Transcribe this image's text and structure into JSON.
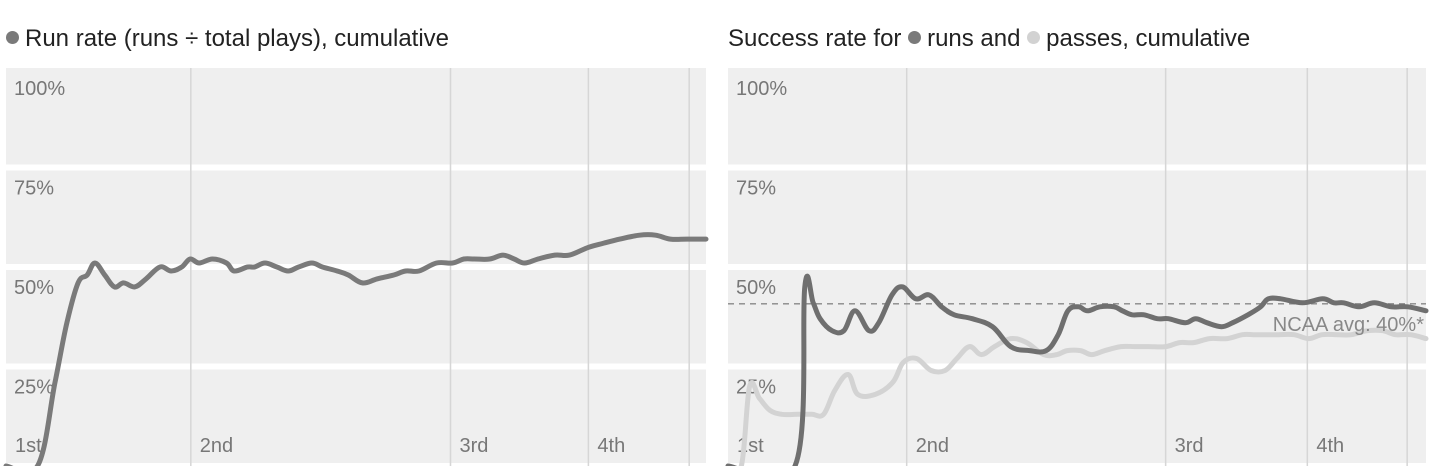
{
  "charts": [
    {
      "title_text": "Run rate (runs ÷ total plays), cumulative"
    },
    {
      "title_prefix": "Success rate for",
      "title_runs": "runs and",
      "title_passes": "passes, cumulative",
      "note": "NCAA avg: 40%*"
    }
  ],
  "chart_data": [
    {
      "type": "line",
      "title": "Run rate (runs ÷ total plays), cumulative",
      "ylim": [
        0,
        100
      ],
      "yticks": [
        "100%",
        "75%",
        "50%",
        "25%"
      ],
      "xlim": [
        0,
        100
      ],
      "quarters": [
        {
          "label": "1st",
          "x": 0
        },
        {
          "label": "2nd",
          "x": 26.4
        },
        {
          "label": "3rd",
          "x": 63.5
        },
        {
          "label": "4th",
          "x": 83.2
        }
      ],
      "extra_divider_x": [
        97.6
      ],
      "grid": true,
      "series": [
        {
          "color": "#7a7a7a",
          "x": [
            0,
            4.5,
            7.0,
            8.7,
            10.3,
            11.6,
            12.7,
            14.1,
            15.5,
            16.8,
            18.4,
            20.0,
            22.0,
            23.6,
            25.1,
            26.3,
            27.6,
            29.5,
            31.5,
            32.6,
            34.5,
            35.5,
            37.0,
            38.7,
            40.3,
            41.8,
            43.7,
            45.2,
            47.3,
            48.9,
            50.9,
            53.0,
            55.4,
            57.1,
            59.0,
            61.5,
            63.8,
            65.4,
            66.9,
            69.1,
            71.0,
            72.6,
            74.1,
            76.0,
            78.4,
            80.5,
            83.3,
            85.4,
            87.7,
            90.5,
            92.8,
            94.9,
            97.3,
            100
          ],
          "y": [
            0,
            0,
            21,
            36,
            46,
            48,
            51,
            48,
            45,
            46,
            45,
            47,
            50,
            49,
            50,
            52,
            51,
            52,
            51,
            49,
            50,
            50,
            51,
            50,
            49,
            50,
            51,
            50,
            49,
            48,
            46,
            47,
            48,
            49,
            49,
            51,
            51,
            52,
            52,
            52,
            53,
            52,
            51,
            52,
            53,
            53,
            55,
            56,
            57,
            58,
            58,
            57,
            57,
            57
          ]
        }
      ]
    },
    {
      "type": "line",
      "title": "Success rate for runs and passes, cumulative",
      "ylim": [
        0,
        100
      ],
      "yticks": [
        "100%",
        "75%",
        "50%",
        "25%"
      ],
      "xlim": [
        0,
        100
      ],
      "quarters": [
        {
          "label": "1st",
          "x": 0
        },
        {
          "label": "2nd",
          "x": 25.6
        },
        {
          "label": "3rd",
          "x": 62.7
        },
        {
          "label": "4th",
          "x": 83.0
        }
      ],
      "extra_divider_x": [
        97.3
      ],
      "grid": true,
      "reference_line": {
        "label": "NCAA avg: 40%*",
        "y": 40
      },
      "series": [
        {
          "name": "runs",
          "color": "#6f6f6f",
          "x": [
            0,
            9.6,
            11.0,
            12.2,
            13.2,
            14.9,
            16.6,
            18.2,
            20.2,
            21.6,
            23.5,
            25.0,
            26.9,
            28.8,
            30.6,
            32.4,
            35.0,
            37.9,
            40.5,
            43.2,
            45.6,
            47.3,
            48.7,
            50.2,
            51.5,
            53.3,
            55.3,
            56.5,
            57.9,
            59.6,
            61.5,
            63.1,
            65.5,
            67.0,
            68.6,
            70.7,
            72.3,
            74.5,
            76.3,
            77.4,
            79.2,
            82.3,
            85.2,
            86.8,
            88.2,
            90.4,
            92.6,
            95.0,
            97.4,
            100
          ],
          "y": [
            0,
            0,
            45,
            41,
            37,
            34,
            34,
            39,
            34,
            36,
            43,
            45,
            42,
            43,
            40,
            38,
            37,
            35,
            30,
            29,
            29,
            33,
            39,
            40,
            39,
            40,
            40,
            39,
            38,
            38,
            37,
            37,
            36,
            37,
            36,
            35,
            36,
            38,
            40,
            42,
            42,
            41,
            42,
            41,
            41,
            40,
            41,
            40,
            40,
            39
          ]
        },
        {
          "name": "passes",
          "color": "#d3d3d3",
          "x": [
            0,
            1.9,
            3.1,
            4.5,
            6.0,
            7.7,
            10.0,
            12.0,
            13.7,
            15.3,
            17.2,
            18.6,
            21.1,
            23.6,
            25.1,
            27.0,
            29.1,
            31.1,
            32.8,
            34.6,
            36.3,
            38.2,
            40.5,
            42.8,
            45.2,
            47.1,
            48.6,
            50.5,
            52.1,
            54.0,
            56.3,
            58.3,
            60.3,
            62.7,
            64.7,
            66.7,
            69.0,
            71.5,
            73.7,
            75.3,
            77.0,
            78.9,
            81.1,
            83.2,
            85.1,
            87.4,
            89.3,
            91.6,
            93.8,
            95.6,
            97.8,
            100
          ],
          "y": [
            0,
            0,
            20,
            17,
            14,
            13,
            13,
            13,
            13,
            19,
            23,
            18,
            18,
            21,
            26,
            27,
            24,
            24,
            27,
            30,
            28,
            30,
            32,
            31,
            28,
            28,
            29,
            29,
            28,
            29,
            30,
            30,
            30,
            30,
            31,
            31,
            32,
            32,
            33,
            33,
            33,
            33,
            33,
            32,
            33,
            33,
            33,
            34,
            34,
            33,
            33,
            32
          ]
        }
      ]
    }
  ]
}
